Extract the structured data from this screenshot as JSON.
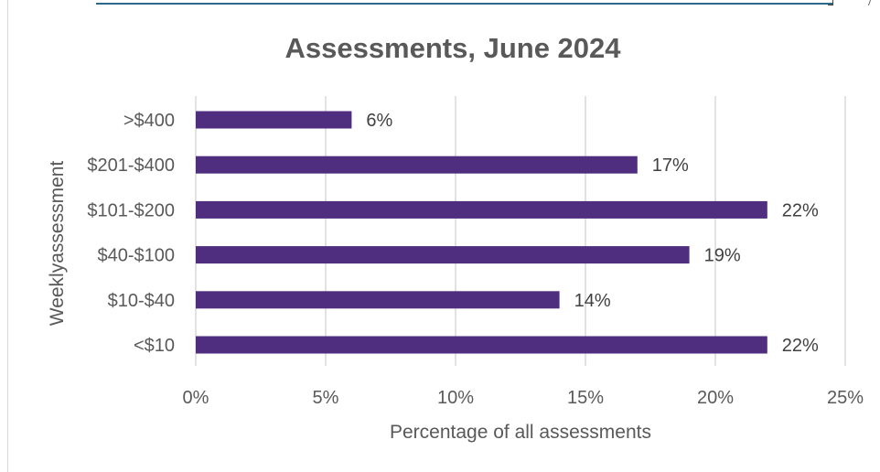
{
  "chart_data": {
    "type": "bar",
    "orientation": "horizontal",
    "title": "Assessments, June 2024",
    "xlabel": "Percentage of all assessments",
    "ylabel": "Weeklyassessment",
    "categories": [
      ">$400",
      "$201-$400",
      "$101-$200",
      "$40-$100",
      "$10-$40",
      "<$10"
    ],
    "values": [
      6,
      17,
      22,
      19,
      14,
      22
    ],
    "data_labels": [
      "6%",
      "17%",
      "22%",
      "19%",
      "14%",
      "22%"
    ],
    "xlim": [
      0,
      25
    ],
    "x_ticks": [
      0,
      5,
      10,
      15,
      20,
      25
    ],
    "x_tick_labels": [
      "0%",
      "5%",
      "10%",
      "15%",
      "20%",
      "25%"
    ],
    "bar_color": "#4f2d7f",
    "grid": "vertical",
    "legend": "none"
  }
}
